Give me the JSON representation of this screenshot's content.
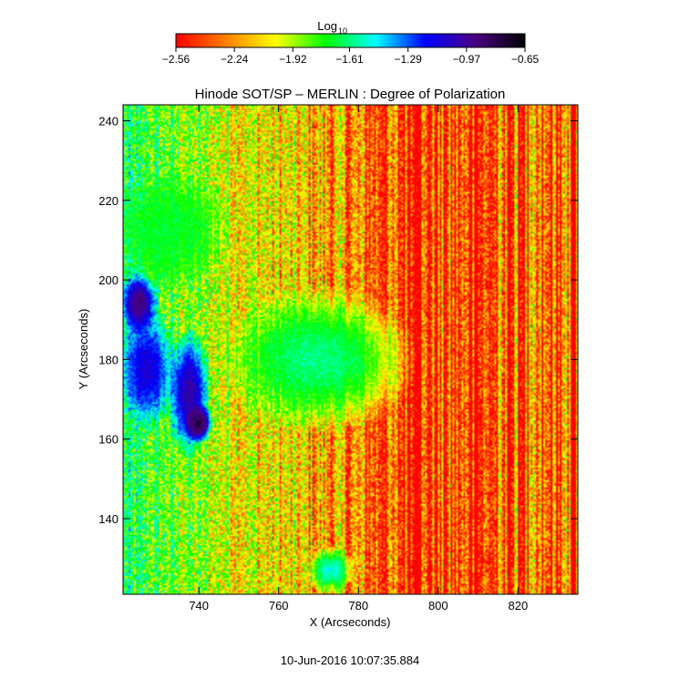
{
  "chart_data": {
    "type": "heatmap",
    "title": "Hinode SOT/SP – MERLIN : Degree of Polarization",
    "xlabel": "X (Arcseconds)",
    "ylabel": "Y (Arcseconds)",
    "xlim": [
      721,
      835
    ],
    "ylim": [
      121,
      244
    ],
    "x_ticks": [
      740,
      760,
      780,
      800,
      820
    ],
    "y_ticks": [
      140,
      160,
      180,
      200,
      220,
      240
    ],
    "colorbar": {
      "label": "Log",
      "label_subscript": "10",
      "range": [
        -2.56,
        -0.65
      ],
      "tick_values": [
        -2.56,
        -2.24,
        -1.92,
        -1.61,
        -1.29,
        -0.97,
        -0.65
      ],
      "tick_labels": [
        "−2.56",
        "−2.24",
        "−1.92",
        "−1.61",
        "−1.29",
        "−0.97",
        "−0.65"
      ],
      "colors": [
        "#ff0000",
        "#ff8000",
        "#ffff00",
        "#00ff00",
        "#00ffff",
        "#0000ff",
        "#4b0082",
        "#000000"
      ]
    },
    "regions": [
      {
        "x": [
          721,
          729
        ],
        "y": [
          187,
          201
        ],
        "value": -0.9
      },
      {
        "x": [
          721,
          733
        ],
        "y": [
          165,
          190
        ],
        "value": -1.1
      },
      {
        "x": [
          733,
          742
        ],
        "y": [
          158,
          185
        ],
        "value": -1.0
      },
      {
        "x": [
          737,
          743
        ],
        "y": [
          160,
          168
        ],
        "value": -0.8
      },
      {
        "x": [
          750,
          790
        ],
        "y": [
          165,
          195
        ],
        "value": -1.6
      },
      {
        "x": [
          721,
          745
        ],
        "y": [
          200,
          225
        ],
        "value": -1.7
      },
      {
        "x": [
          768,
          778
        ],
        "y": [
          122,
          132
        ],
        "value": -1.5
      }
    ],
    "grid": false,
    "legend": "none"
  },
  "timestamp": "10-Jun-2016 10:07:35.884"
}
